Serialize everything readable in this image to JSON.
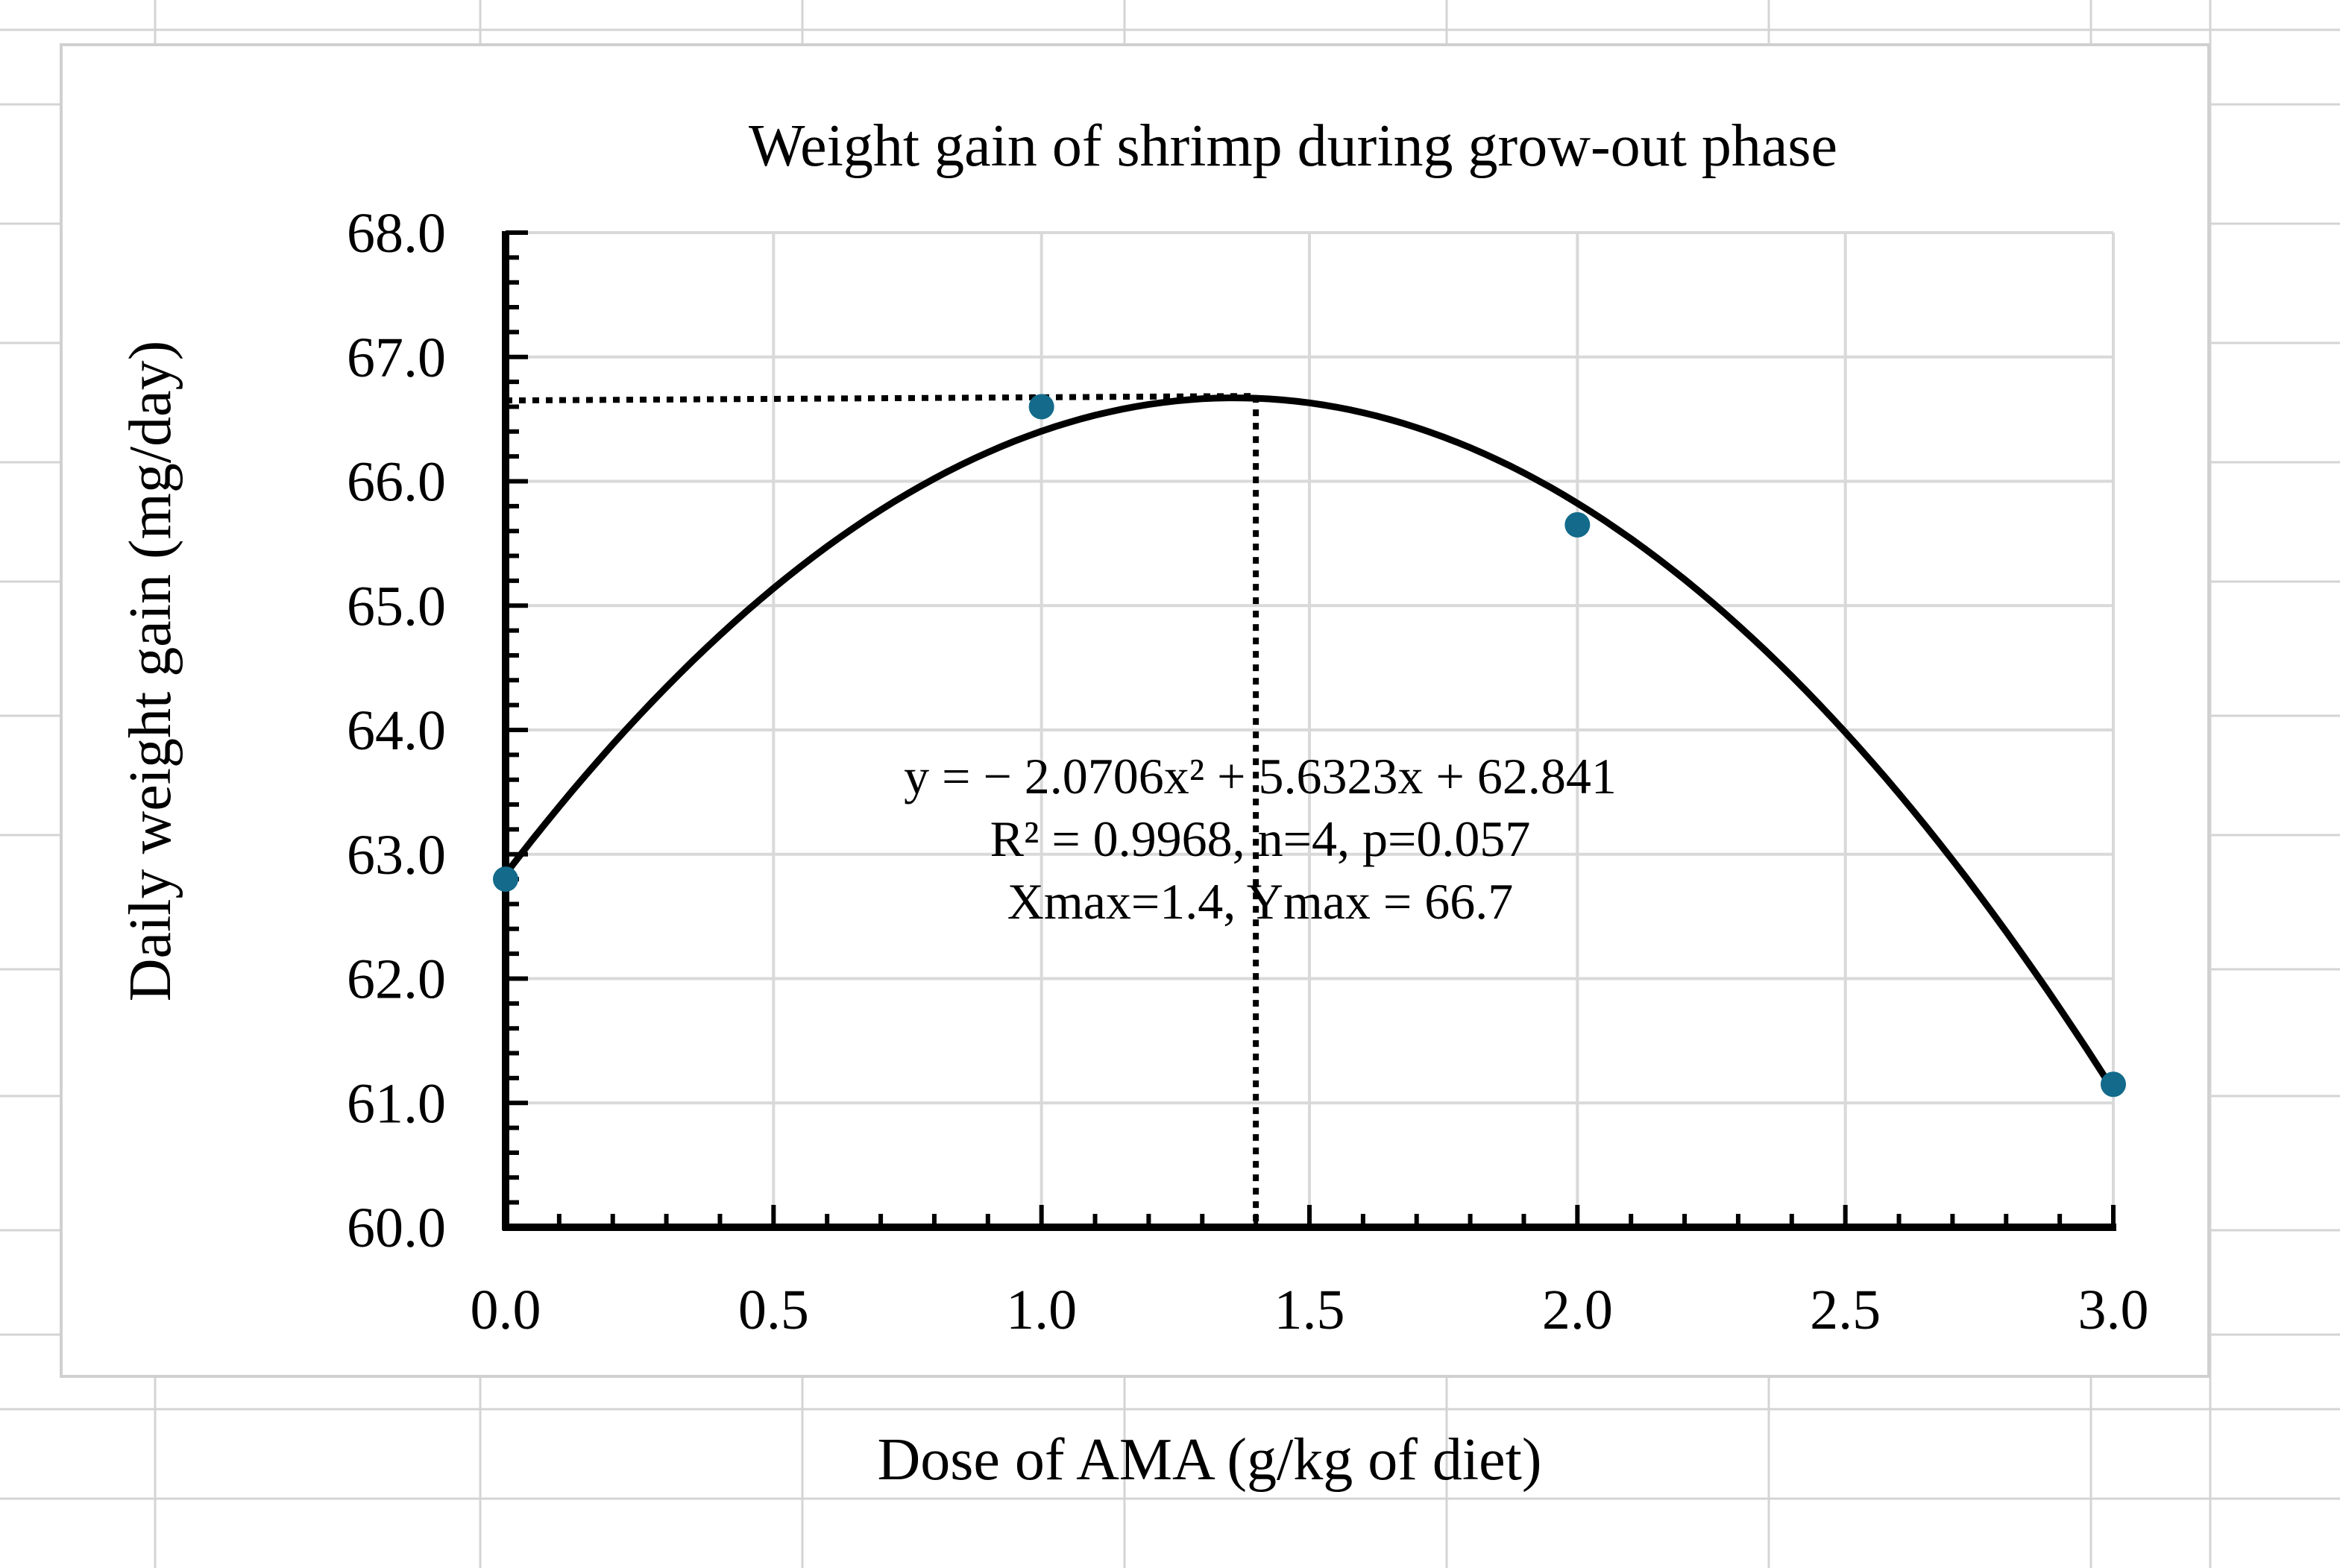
{
  "colors": {
    "point": "#136a8a",
    "curve": "#000000",
    "grid": "#d9d9d9",
    "sheet_grid": "#d4d4d4",
    "axis": "#000000"
  },
  "chart_data": {
    "type": "scatter",
    "title": "Weight gain of shrimp during grow-out phase",
    "xlabel": "Dose of AMA (g/kg of diet)",
    "ylabel": "Daily weight gain (mg/day)",
    "xlim": [
      0,
      3
    ],
    "ylim": [
      60,
      68
    ],
    "x_ticks": [
      "0.0",
      "0.5",
      "1.0",
      "1.5",
      "2.0",
      "2.5",
      "3.0"
    ],
    "x_tick_values": [
      0,
      0.5,
      1,
      1.5,
      2,
      2.5,
      3
    ],
    "y_ticks": [
      "60.0",
      "61.0",
      "62.0",
      "63.0",
      "64.0",
      "65.0",
      "66.0",
      "67.0",
      "68.0"
    ],
    "y_tick_values": [
      60,
      61,
      62,
      63,
      64,
      65,
      66,
      67,
      68
    ],
    "series": [
      {
        "name": "Daily weight gain",
        "x": [
          0,
          1,
          2,
          3
        ],
        "y": [
          62.8,
          66.6,
          65.65,
          61.15
        ]
      }
    ],
    "trendline": {
      "type": "polynomial",
      "order": 2,
      "coefficients": [
        -2.0706,
        5.6323,
        62.841
      ],
      "x_range": [
        0,
        3
      ]
    },
    "reference_lines": {
      "xmax": 1.4,
      "ymax": 66.65
    },
    "annotation": {
      "line1": "y =  − 2.0706x² + 5.6323x + 62.841",
      "line2": "R² = 0.9968, n=4, p=0.057",
      "line3": "Xmax=1.4,  Ymax = 66.7"
    },
    "grid": true,
    "legend": "none"
  }
}
